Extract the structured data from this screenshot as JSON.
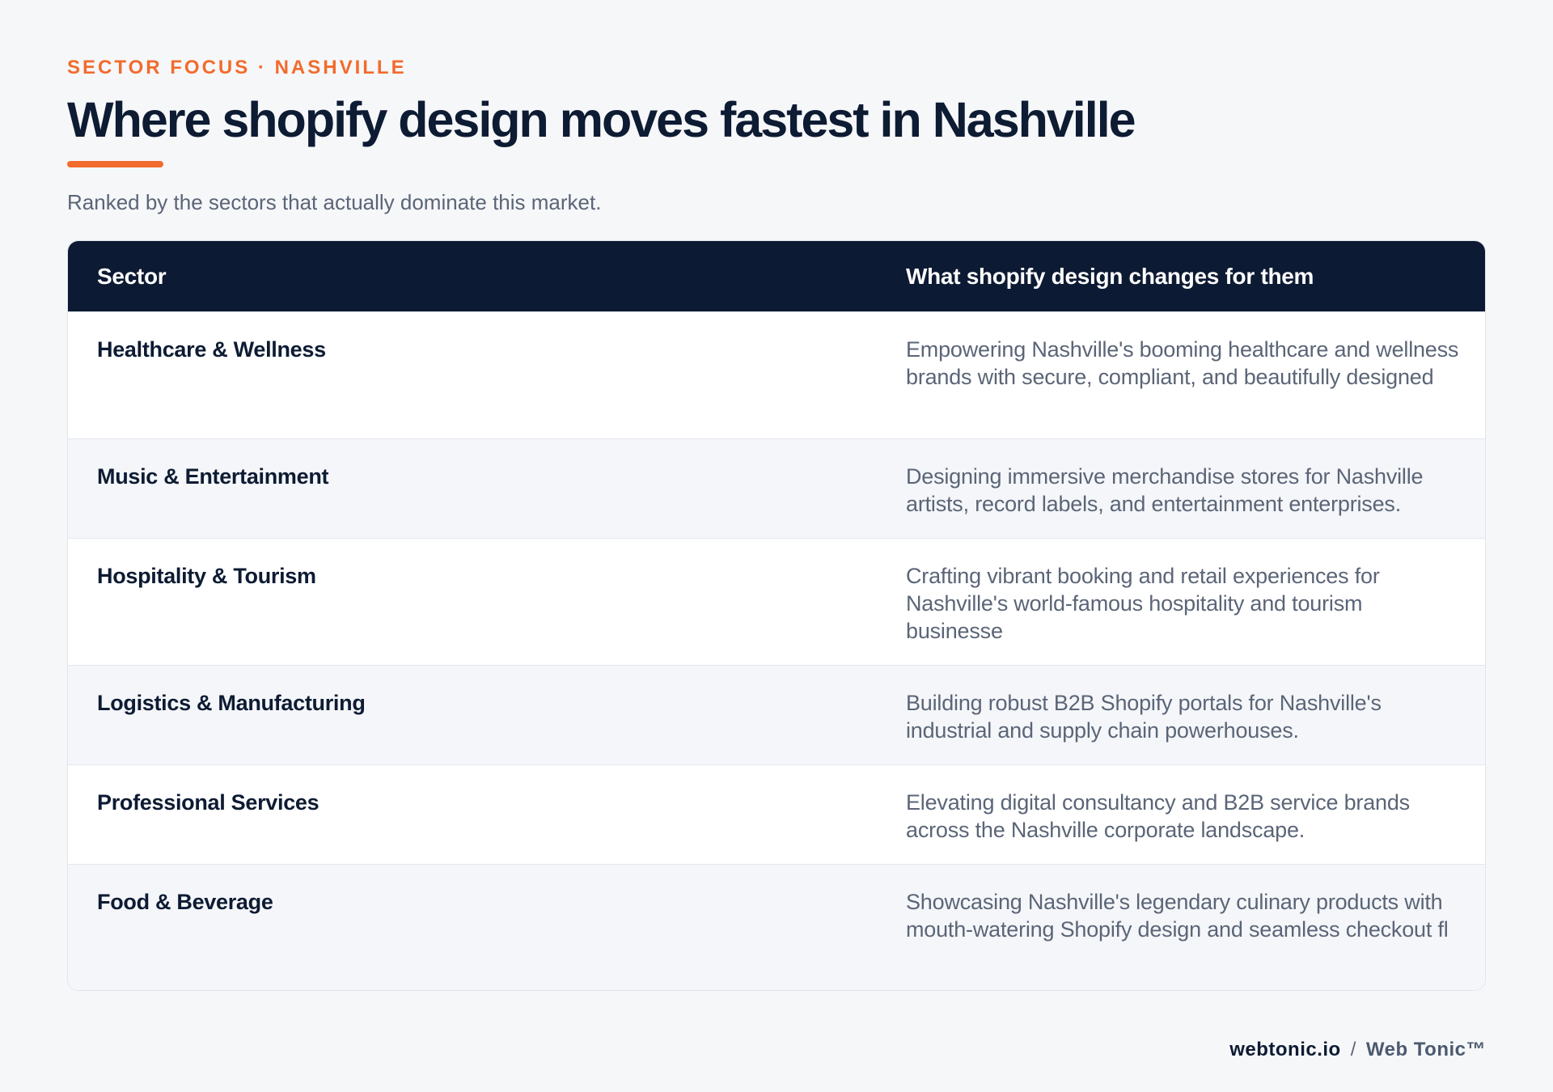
{
  "header": {
    "eyebrow": "SECTOR FOCUS · NASHVILLE",
    "title": "Where shopify design moves fastest in Nashville",
    "subtitle": "Ranked by the sectors that actually dominate this market."
  },
  "table": {
    "columns": [
      "Sector",
      "What shopify design changes for them"
    ],
    "rows": [
      {
        "sector": "Healthcare & Wellness",
        "description": "Empowering Nashville's booming healthcare and wellness brands with secure, compliant, and beautifully designed"
      },
      {
        "sector": "Music & Entertainment",
        "description": "Designing immersive merchandise stores for Nashville artists, record labels, and entertainment enterprises."
      },
      {
        "sector": "Hospitality & Tourism",
        "description": "Crafting vibrant booking and retail experiences for Nashville's world-famous hospitality and tourism businesse"
      },
      {
        "sector": "Logistics & Manufacturing",
        "description": "Building robust B2B Shopify portals for Nashville's industrial and supply chain powerhouses."
      },
      {
        "sector": "Professional Services",
        "description": "Elevating digital consultancy and B2B service brands across the Nashville corporate landscape."
      },
      {
        "sector": "Food & Beverage",
        "description": "Showcasing Nashville's legendary culinary products with mouth-watering Shopify design and seamless checkout fl"
      }
    ]
  },
  "footer": {
    "domain": "webtonic.io",
    "separator": "/",
    "brand": "Web Tonic™"
  },
  "colors": {
    "accent": "#f26b2d",
    "navy": "#0d1a33",
    "muted": "#5b6577",
    "background": "#f6f7f9"
  }
}
